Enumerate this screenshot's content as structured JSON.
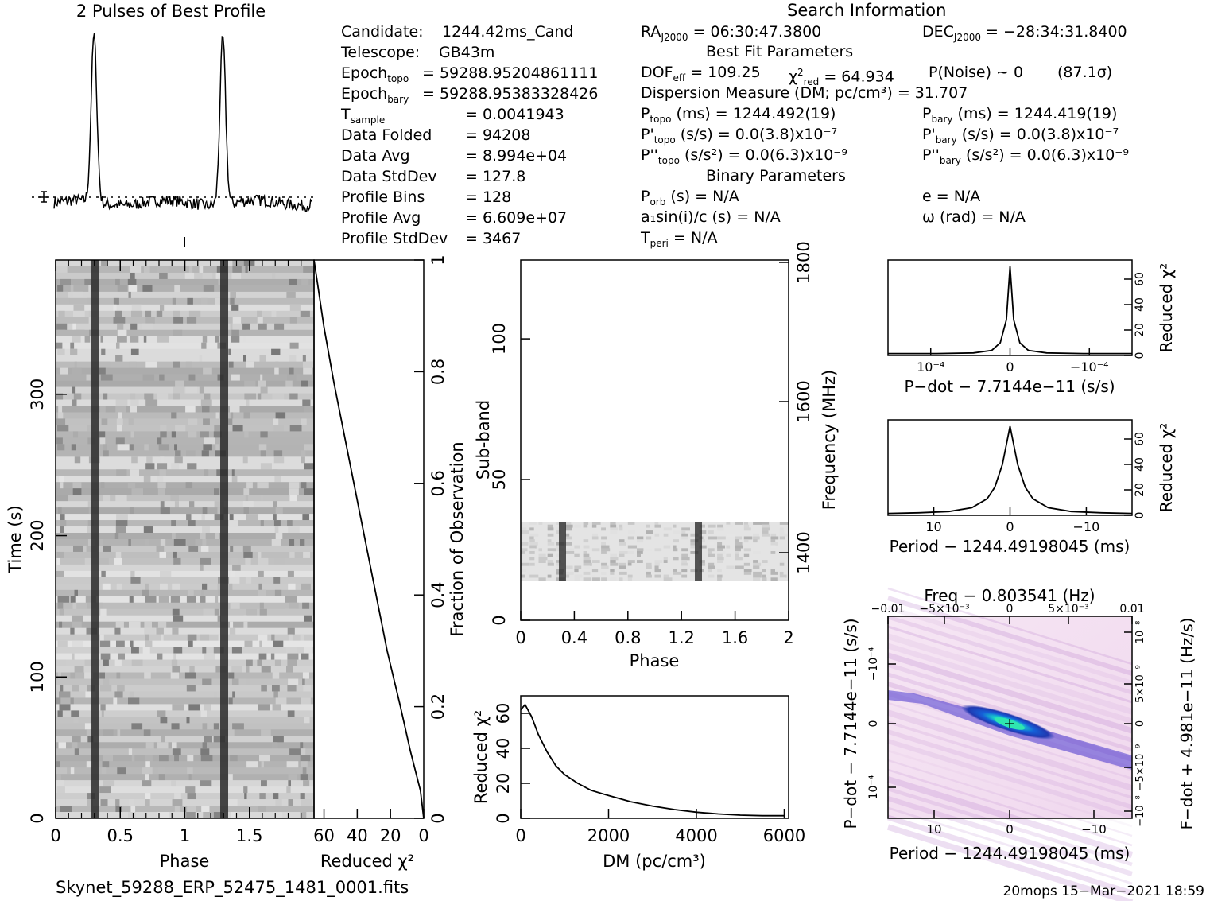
{
  "header": {
    "profile_title": "2 Pulses of Best Profile",
    "search_title": "Search Information",
    "best_fit_title": "Best Fit Parameters",
    "binary_title": "Binary Parameters"
  },
  "candidate_info": [
    {
      "label": "Candidate:",
      "value": "1244.42ms_Cand"
    },
    {
      "label": "Telescope:",
      "value": "GB43m"
    },
    {
      "label": "Epoch_topo",
      "value": "= 59288.95204861111"
    },
    {
      "label": "Epoch_bary",
      "value": "= 59288.95383328426"
    },
    {
      "label": "T_sample",
      "value": "=  0.0041943"
    },
    {
      "label": "Data Folded",
      "value": "=  94208"
    },
    {
      "label": "Data Avg",
      "value": "=  8.994e+04"
    },
    {
      "label": "Data StdDev",
      "value": "=  127.8"
    },
    {
      "label": "Profile Bins",
      "value": "=  128"
    },
    {
      "label": "Profile Avg",
      "value": "=  6.609e+07"
    },
    {
      "label": "Profile StdDev",
      "value": "=  3467"
    }
  ],
  "search_info": {
    "ra": "= 06:30:47.3800",
    "dec": "= −28:34:31.8400",
    "dof_line": "= 109.25",
    "chi_line": "= 64.934",
    "pnoise": "P(Noise) ~ 0",
    "sigma": "(87.1σ)",
    "dm_line": "Dispersion Measure (DM; pc/cm³) = 31.707",
    "ptopo": "(ms) =  1244.492(19)",
    "pbary": "(ms) =  1244.419(19)",
    "pdtopo": "(s/s) = 0.0(3.8)x10⁻⁷",
    "pdbary": "(s/s) = 0.0(3.8)x10⁻⁷",
    "pddtopo": "(s/s²) = 0.0(6.3)x10⁻⁹",
    "pddbary": "(s/s²) = 0.0(6.3)x10⁻⁹",
    "porb": "(s) = N/A",
    "ecc": "e = N/A",
    "asini": "a₁sin(i)/c (s) = N/A",
    "omega": "ω (rad) = N/A",
    "tperi": "= N/A"
  },
  "footer": {
    "filename": "Skynet_59288_ERP_52475_1481_0001.fits",
    "stamp": "20mops 15−Mar−2021 18:59"
  },
  "chart_data": [
    {
      "type": "line",
      "title": "2 Pulses of Best Profile",
      "x": [
        0,
        2
      ],
      "peaks_phase": [
        0.31,
        1.31
      ],
      "note_series": "normalized pulse profile, two cycles"
    },
    {
      "type": "heatmap",
      "name": "time-phase",
      "xlabel": "Phase",
      "ylabel": "Time (s)",
      "xlim": [
        0,
        2
      ],
      "ylim": [
        0,
        395
      ],
      "x_ticks": [
        "0",
        "0.5",
        "1",
        "1.5"
      ],
      "y_ticks": [
        "0",
        "100",
        "200",
        "300"
      ],
      "colormap": "gray"
    },
    {
      "type": "line",
      "name": "cumulative-chi2",
      "xlabel": "Reduced χ²",
      "ylabel": "Fraction of Observation",
      "x_ticks": [
        "60",
        "40",
        "20",
        "0"
      ],
      "y_ticks": [
        "0",
        "0.2",
        "0.4",
        "0.6",
        "0.8",
        "1"
      ],
      "x": [
        0,
        2,
        8,
        14,
        22,
        30,
        38,
        46,
        54,
        60,
        64,
        66
      ],
      "y": [
        0.0,
        0.05,
        0.12,
        0.2,
        0.3,
        0.42,
        0.54,
        0.66,
        0.78,
        0.88,
        0.96,
        1.0
      ]
    },
    {
      "type": "heatmap",
      "name": "subband-phase",
      "xlabel": "Phase",
      "ylabel": "Sub-band",
      "y2label": "Frequency (MHz)",
      "xlim": [
        0,
        2
      ],
      "ylim": [
        0,
        128
      ],
      "x_ticks": [
        "0",
        "0.4",
        "0.8",
        "1.2",
        "1.6",
        "2"
      ],
      "y_ticks": [
        "0",
        "50",
        "100"
      ],
      "y2_ticks": [
        "1400",
        "1600",
        "1800"
      ],
      "band_subbands": [
        14,
        35
      ],
      "colormap": "gray"
    },
    {
      "type": "line",
      "name": "dm-curve",
      "xlabel": "DM (pc/cm³)",
      "ylabel": "Reduced χ²",
      "xlim": [
        0,
        6100
      ],
      "ylim": [
        0,
        70
      ],
      "x_ticks": [
        "0",
        "2000",
        "4000",
        "6000"
      ],
      "y_ticks": [
        "0",
        "20",
        "40",
        "60"
      ],
      "x": [
        0,
        100,
        250,
        400,
        600,
        800,
        1000,
        1300,
        1600,
        2000,
        2500,
        3000,
        3500,
        4000,
        4500,
        5000,
        5500,
        6000
      ],
      "y": [
        62,
        65,
        58,
        48,
        38,
        30,
        25,
        20,
        16,
        13,
        9.5,
        7,
        5,
        3.5,
        2.5,
        1.8,
        1.5,
        1.5
      ]
    },
    {
      "type": "line",
      "name": "pdot-curve",
      "xlabel": "P−dot − 7.7144e−11 (s/s)",
      "ylabel": "Reduced χ²",
      "x_ticks": [
        "10⁻⁴",
        "0",
        "−10⁻⁴"
      ],
      "y_ticks": [
        "0",
        "20",
        "40",
        "60"
      ],
      "ylim": [
        0,
        75
      ],
      "x": [
        -1.0,
        -0.6,
        -0.3,
        -0.15,
        -0.08,
        -0.03,
        0,
        0.03,
        0.08,
        0.15,
        0.3,
        0.6,
        1.0
      ],
      "y": [
        1.5,
        1.5,
        2,
        4,
        10,
        28,
        70,
        28,
        10,
        4,
        2,
        1.5,
        1.5
      ]
    },
    {
      "type": "line",
      "name": "period-curve",
      "xlabel": "Period − 1244.49198045 (ms)",
      "ylabel": "Reduced χ²",
      "x_ticks": [
        "10",
        "0",
        "−10"
      ],
      "y_ticks": [
        "0",
        "20",
        "40",
        "60"
      ],
      "ylim": [
        0,
        75
      ],
      "x": [
        16,
        12,
        8,
        5,
        3,
        2,
        1,
        0,
        -1,
        -2,
        -3,
        -5,
        -8,
        -12,
        -16
      ],
      "y": [
        1.5,
        2,
        3,
        6,
        13,
        22,
        40,
        70,
        40,
        22,
        13,
        6,
        3,
        2,
        1.5
      ]
    },
    {
      "type": "heatmap",
      "name": "period-pdot-plane",
      "title": "Freq − 0.803541 (Hz)",
      "xlabel": "Period − 1244.49198045 (ms)",
      "ylabel": "P−dot − 7.7144e−11 (s/s)",
      "y2label": "F−dot + 4.981e−11 (Hz/s)",
      "x_ticks": [
        "10",
        "0",
        "−10"
      ],
      "y_ticks": [
        "10⁻⁴",
        "0",
        "−10⁻⁴"
      ],
      "top_ticks": [
        "−0.01",
        "−5×10⁻³",
        "0",
        "5×10⁻³",
        "0.01"
      ],
      "right_ticks": [
        "−10⁻⁸",
        "−5×10⁻⁹",
        "0",
        "5×10⁻⁹",
        "10⁻⁸"
      ],
      "colormap": "white-purple-blue-cyan-green"
    }
  ]
}
